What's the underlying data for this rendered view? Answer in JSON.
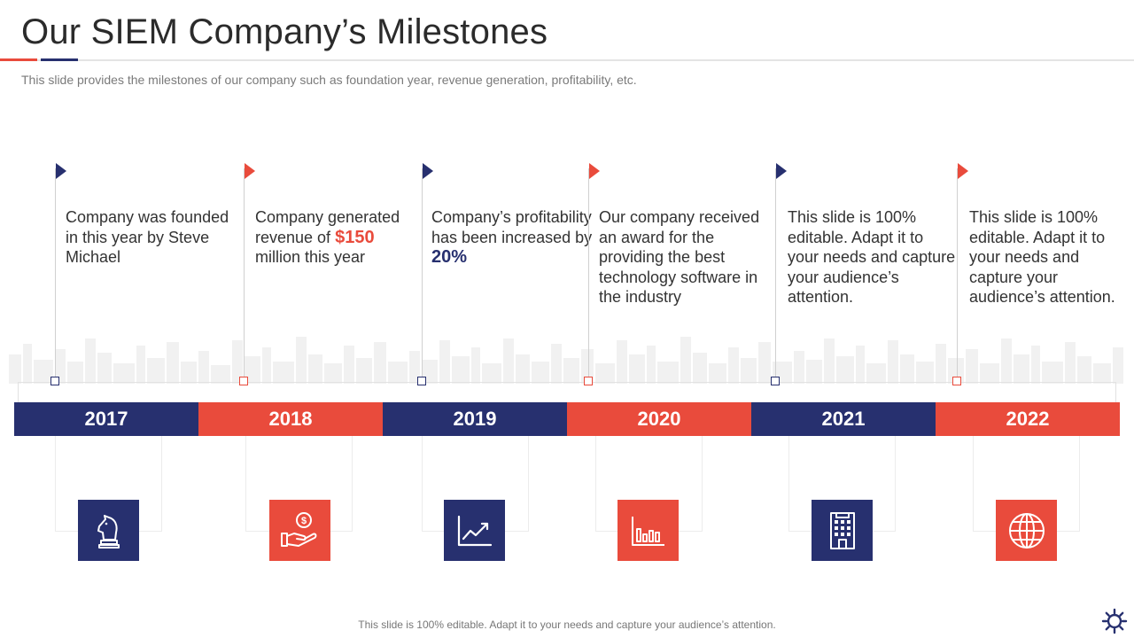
{
  "title": "Our SIEM Company’s Milestones",
  "subtitle": "This slide provides the milestones of our company such as foundation year, revenue generation, profitability, etc.",
  "footer": "This slide is 100% editable. Adapt it to your needs and capture your audience’s attention.",
  "colors": {
    "navy": "#27306f",
    "red": "#e94b3c"
  },
  "milestones": [
    {
      "year": "2017",
      "color": "navy",
      "icon": "chess-knight-icon",
      "text": "Company was founded in this year by Steve Michael"
    },
    {
      "year": "2018",
      "color": "red",
      "icon": "money-hand-icon",
      "text_before": "Company generated revenue of",
      "highlight": "$150",
      "text_after": "million this year"
    },
    {
      "year": "2019",
      "color": "navy",
      "icon": "growth-chart-icon",
      "text_before": "Company’s profitability has been increased by",
      "highlight": "20%",
      "text_after": ""
    },
    {
      "year": "2020",
      "color": "red",
      "icon": "bar-chart-icon",
      "text": "Our company received an award for the providing the best technology software in the industry"
    },
    {
      "year": "2021",
      "color": "navy",
      "icon": "office-building-icon",
      "text": "This slide is 100% editable. Adapt it to your needs and capture your audience’s attention."
    },
    {
      "year": "2022",
      "color": "red",
      "icon": "globe-icon",
      "text": "This slide is 100% editable. Adapt it to your needs and capture your audience’s attention."
    }
  ]
}
